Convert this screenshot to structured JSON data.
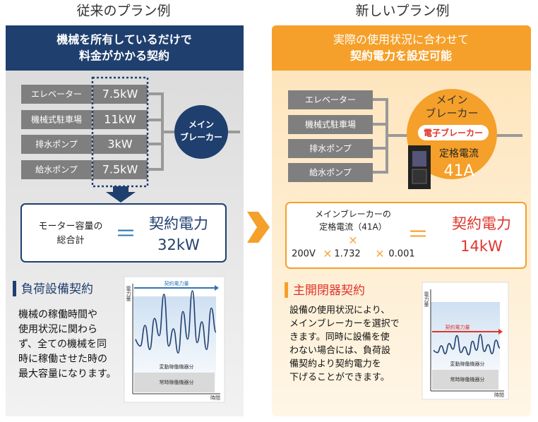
{
  "left": {
    "heading": "従来のプラン例",
    "banner": [
      "機械を所有しているだけで",
      "料金がかかる契約"
    ],
    "equipment": [
      {
        "name": "エレベーター",
        "power": "7.5kW"
      },
      {
        "name": "機械式駐車場",
        "power": "11kW"
      },
      {
        "name": "排水ポンプ",
        "power": "3kW"
      },
      {
        "name": "給水ポンプ",
        "power": "7.5kW"
      }
    ],
    "breaker": [
      "メイン",
      "ブレーカー"
    ],
    "formula": {
      "left": [
        "モーター容量の",
        "総合計"
      ],
      "equals": "＝",
      "right": [
        "契約電力",
        "32kW"
      ]
    },
    "section_title": "負荷設備契約",
    "description": [
      "機械の稼働時間や",
      "使用状況に関わら",
      "ず、全ての機械を同",
      "時に稼働させた時の",
      "最大容量になります。"
    ],
    "graph": {
      "y_label": "電力量",
      "x_label": "時間",
      "line_label": "契約電力量",
      "band1": "変動稼働機器分",
      "band2": "常時稼働機器分"
    }
  },
  "right": {
    "heading": "新しいプラン例",
    "banner": [
      "実際の使用状況に合わせて",
      "契約電力を設定可能"
    ],
    "equipment": [
      "エレベーター",
      "機械式駐車場",
      "排水ポンプ",
      "給水ポンプ"
    ],
    "breaker": [
      "メイン",
      "ブレーカー"
    ],
    "electronic": "電子ブレーカー",
    "rated": [
      "定格電流",
      "41A"
    ],
    "formula": {
      "left": [
        "メインブレーカーの",
        "定格電流（41A）",
        "×",
        "200V",
        "×",
        "1.732",
        "×",
        "0.001"
      ],
      "equals": "＝",
      "right": [
        "契約電力",
        "14kW"
      ]
    },
    "section_title": "主開閉器契約",
    "description": [
      "設備の使用状況により、",
      "メインブレーカーを選択で",
      "きます。同時に設備を使",
      "わない場合には、負荷設",
      "備契約より契約電力を",
      "下げることができます。"
    ],
    "graph": {
      "y_label": "電力量",
      "x_label": "時間",
      "line_label": "契約電力量",
      "band1": "変動稼働機器分",
      "band2": "常時稼働機器分"
    }
  }
}
